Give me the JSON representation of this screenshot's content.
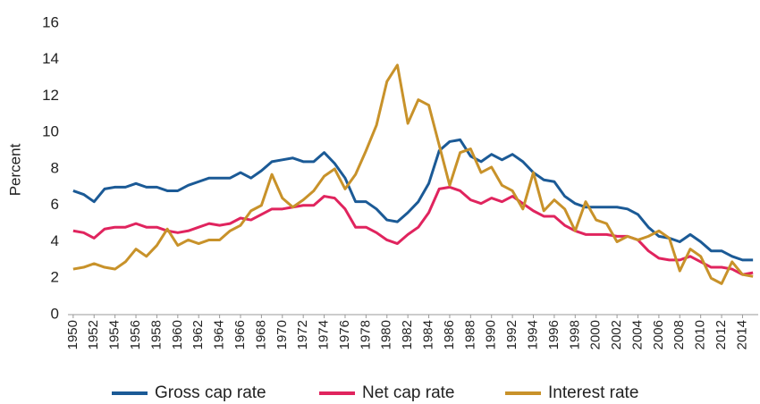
{
  "chart_data": {
    "type": "line",
    "y_label": "Percent",
    "x": [
      1950,
      1951,
      1952,
      1953,
      1954,
      1955,
      1956,
      1957,
      1958,
      1959,
      1960,
      1961,
      1962,
      1963,
      1964,
      1965,
      1966,
      1967,
      1968,
      1969,
      1970,
      1971,
      1972,
      1973,
      1974,
      1975,
      1976,
      1977,
      1978,
      1979,
      1980,
      1981,
      1982,
      1983,
      1984,
      1985,
      1986,
      1987,
      1988,
      1989,
      1990,
      1991,
      1992,
      1993,
      1994,
      1995,
      1996,
      1997,
      1998,
      1999,
      2000,
      2001,
      2002,
      2003,
      2004,
      2005,
      2006,
      2007,
      2008,
      2009,
      2010,
      2011,
      2012,
      2013,
      2014,
      2015
    ],
    "xlim": [
      1949.5,
      2015.5
    ],
    "xticks": [
      1950,
      1952,
      1954,
      1956,
      1958,
      1960,
      1962,
      1964,
      1966,
      1968,
      1970,
      1972,
      1974,
      1976,
      1978,
      1980,
      1982,
      1984,
      1986,
      1988,
      1990,
      1992,
      1994,
      1996,
      1998,
      2000,
      2002,
      2004,
      2006,
      2008,
      2010,
      2012,
      2014
    ],
    "ylim": [
      0,
      16
    ],
    "yticks": [
      0,
      2,
      4,
      6,
      8,
      10,
      12,
      14,
      16
    ],
    "grid": false,
    "legend": "bottom",
    "series": [
      {
        "name": "Gross cap rate",
        "color": "#1b5a96",
        "values": [
          6.8,
          6.6,
          6.2,
          6.9,
          7.0,
          7.0,
          7.2,
          7.0,
          7.0,
          6.8,
          6.8,
          7.1,
          7.3,
          7.5,
          7.5,
          7.5,
          7.8,
          7.5,
          7.9,
          8.4,
          8.5,
          8.6,
          8.4,
          8.4,
          8.9,
          8.3,
          7.5,
          6.2,
          6.2,
          5.8,
          5.2,
          5.1,
          5.6,
          6.2,
          7.2,
          9.0,
          9.5,
          9.6,
          8.7,
          8.4,
          8.8,
          8.5,
          8.8,
          8.4,
          7.8,
          7.4,
          7.3,
          6.5,
          6.1,
          5.9,
          5.9,
          5.9,
          5.9,
          5.8,
          5.5,
          4.8,
          4.3,
          4.2,
          4.0,
          4.4,
          4.0,
          3.5,
          3.5,
          3.2,
          3.0,
          3.0
        ]
      },
      {
        "name": "Net cap rate",
        "color": "#e0245e",
        "values": [
          4.6,
          4.5,
          4.2,
          4.7,
          4.8,
          4.8,
          5.0,
          4.8,
          4.8,
          4.6,
          4.5,
          4.6,
          4.8,
          5.0,
          4.9,
          5.0,
          5.3,
          5.2,
          5.5,
          5.8,
          5.8,
          5.9,
          6.0,
          6.0,
          6.5,
          6.4,
          5.8,
          4.8,
          4.8,
          4.5,
          4.1,
          3.9,
          4.4,
          4.8,
          5.6,
          6.9,
          7.0,
          6.8,
          6.3,
          6.1,
          6.4,
          6.2,
          6.5,
          6.1,
          5.7,
          5.4,
          5.4,
          4.9,
          4.6,
          4.4,
          4.4,
          4.4,
          4.3,
          4.3,
          4.1,
          3.5,
          3.1,
          3.0,
          3.0,
          3.2,
          2.9,
          2.6,
          2.6,
          2.5,
          2.2,
          2.3
        ]
      },
      {
        "name": "Interest rate",
        "color": "#c8922a",
        "values": [
          2.5,
          2.6,
          2.8,
          2.6,
          2.5,
          2.9,
          3.6,
          3.2,
          3.8,
          4.7,
          3.8,
          4.1,
          3.9,
          4.1,
          4.1,
          4.6,
          4.9,
          5.7,
          6.0,
          7.7,
          6.4,
          5.9,
          6.3,
          6.8,
          7.6,
          8.0,
          6.9,
          7.7,
          9.0,
          10.4,
          12.8,
          13.7,
          10.5,
          11.8,
          11.5,
          9.3,
          7.1,
          8.9,
          9.1,
          7.8,
          8.1,
          7.1,
          6.8,
          5.8,
          7.8,
          5.7,
          6.3,
          5.8,
          4.6,
          6.2,
          5.2,
          5.0,
          4.0,
          4.3,
          4.1,
          4.3,
          4.6,
          4.2,
          2.4,
          3.6,
          3.2,
          2.0,
          1.7,
          2.9,
          2.2,
          2.1
        ]
      }
    ]
  }
}
